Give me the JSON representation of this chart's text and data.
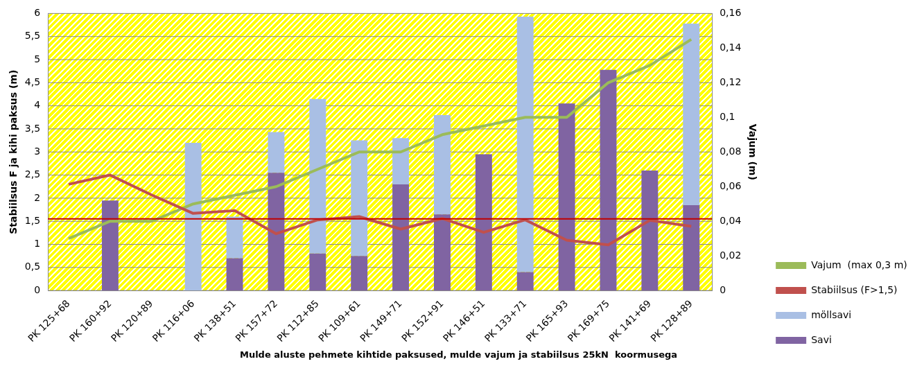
{
  "chart_data": {
    "type": "bar",
    "stacked": true,
    "title": "Mulde aluste pehmete kihtide paksused, mulde vajum ja stabiilsus 25kN  koormusega",
    "ylabel": "Stabiilsus F ja kihi paksus (m)",
    "y2label": "Vajum (m)",
    "categories": [
      "PK 125+68",
      "PK 160+92",
      "PK 120+89",
      "PK 116+06",
      "PK 138+51",
      "PK 157+72",
      "PK 112+85",
      "PK 109+61",
      "PK 149+71",
      "PK 152+91",
      "PK 146+51",
      "PK 133+71",
      "PK 165+93",
      "PK 169+75",
      "PK 141+69",
      "PK 128+89"
    ],
    "series": [
      {
        "name": "Savi",
        "color": "#8064a2",
        "values": [
          null,
          1.95,
          null,
          null,
          0.7,
          2.55,
          0.8,
          0.75,
          2.3,
          1.65,
          2.95,
          0.4,
          4.05,
          4.78,
          2.6,
          1.85
        ]
      },
      {
        "name": "möllsavi",
        "color": "#a9bfe4",
        "values": [
          null,
          null,
          null,
          3.2,
          0.9,
          0.88,
          3.35,
          2.5,
          1.0,
          2.15,
          null,
          5.53,
          null,
          null,
          null,
          3.93
        ]
      },
      {
        "name": "Stabiilsus (F>1,5)",
        "type": "line",
        "color": "#c0504d",
        "values": [
          2.3,
          2.5,
          2.07,
          1.67,
          1.73,
          1.23,
          1.53,
          1.6,
          1.33,
          1.56,
          1.26,
          1.53,
          1.09,
          0.99,
          1.52,
          1.39
        ]
      },
      {
        "name": "Vajum  (max 0,3 m)",
        "type": "line",
        "axis": "y2",
        "color": "#9bbb59",
        "values": [
          0.03,
          0.04,
          0.04,
          0.05,
          0.055,
          0.06,
          0.07,
          0.08,
          0.08,
          0.09,
          0.095,
          0.1,
          0.1,
          0.12,
          0.13,
          0.145
        ]
      }
    ],
    "ylim": [
      0,
      6
    ],
    "yticks": [
      0,
      {
        "value": 0.5,
        "label": "0,5"
      },
      1,
      {
        "value": 1.5,
        "label": "1,5"
      },
      2,
      {
        "value": 2.5,
        "label": "2,5"
      },
      3,
      {
        "value": 3.5,
        "label": "3,5"
      },
      4,
      {
        "value": 4.5,
        "label": "4,5"
      },
      5,
      {
        "value": 5.5,
        "label": "5,5"
      },
      6
    ],
    "y2lim": [
      0,
      0.16
    ],
    "y2ticks": [
      0,
      {
        "value": 0.02,
        "label": "0,02"
      },
      {
        "value": 0.04,
        "label": "0,04"
      },
      {
        "value": 0.06,
        "label": "0,06"
      },
      {
        "value": 0.08,
        "label": "0,08"
      },
      {
        "value": 0.1,
        "label": "0,1"
      },
      {
        "value": 0.12,
        "label": "0,12"
      },
      {
        "value": 0.14,
        "label": "0,14"
      },
      {
        "value": 0.16,
        "label": "0,16"
      }
    ],
    "ref_lines": [
      {
        "axis": "y",
        "value": 1.55,
        "color": "#c00000"
      }
    ],
    "grid": "y",
    "legend": "right",
    "marker": "none"
  }
}
